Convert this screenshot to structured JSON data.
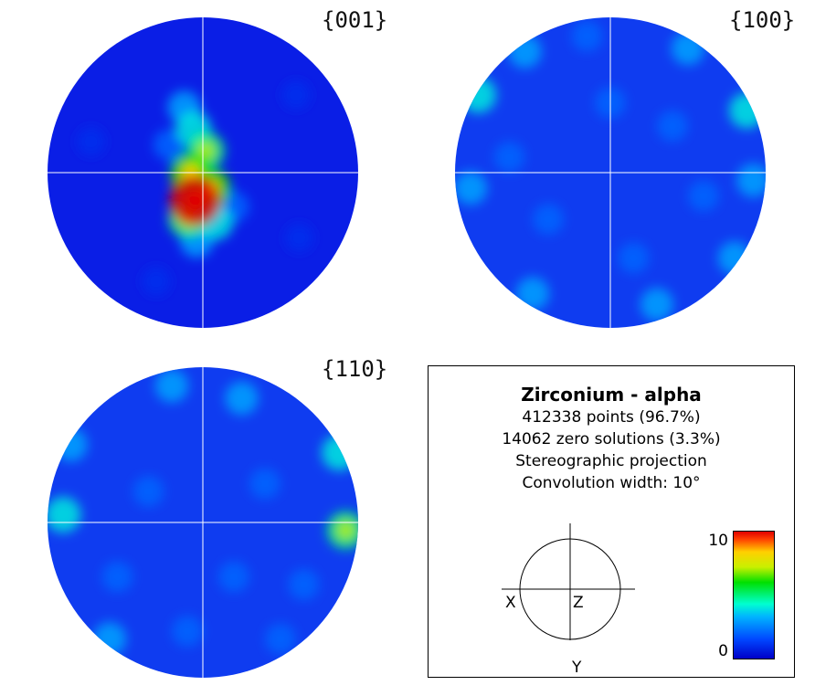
{
  "chart_data": {
    "type": "pole_figure",
    "figures": [
      {
        "label": "{001}",
        "base_color": "#0a1ee6",
        "hotspots": [
          {
            "x": -0.05,
            "y": 0.18,
            "level": 10
          },
          {
            "x": 0.05,
            "y": 0.1,
            "level": 6
          },
          {
            "x": -0.08,
            "y": 0.0,
            "level": 6
          },
          {
            "x": 0.02,
            "y": -0.14,
            "level": 5
          },
          {
            "x": -0.06,
            "y": -0.28,
            "level": 4
          },
          {
            "x": -0.1,
            "y": 0.3,
            "level": 5
          },
          {
            "x": 0.08,
            "y": 0.32,
            "level": 4
          },
          {
            "x": -0.04,
            "y": 0.44,
            "level": 3
          },
          {
            "x": -0.12,
            "y": -0.42,
            "level": 3
          },
          {
            "x": -0.22,
            "y": -0.18,
            "level": 2
          },
          {
            "x": 0.2,
            "y": 0.22,
            "level": 2
          },
          {
            "x": -0.72,
            "y": -0.2,
            "level": 1
          },
          {
            "x": -0.3,
            "y": 0.7,
            "level": 1
          },
          {
            "x": 0.62,
            "y": 0.42,
            "level": 1
          },
          {
            "x": 0.6,
            "y": -0.5,
            "level": 1
          }
        ]
      },
      {
        "label": "{100}",
        "base_color": "#0f3cf0",
        "hotspots": [
          {
            "x": -0.85,
            "y": -0.5,
            "level": 4
          },
          {
            "x": 0.88,
            "y": -0.4,
            "level": 4
          },
          {
            "x": 0.8,
            "y": 0.55,
            "level": 3
          },
          {
            "x": -0.9,
            "y": 0.1,
            "level": 3
          },
          {
            "x": 0.92,
            "y": 0.05,
            "level": 3
          },
          {
            "x": -0.55,
            "y": -0.78,
            "level": 3
          },
          {
            "x": 0.5,
            "y": -0.8,
            "level": 3
          },
          {
            "x": -0.5,
            "y": 0.78,
            "level": 3
          },
          {
            "x": 0.3,
            "y": 0.85,
            "level": 3
          },
          {
            "x": -0.15,
            "y": -0.88,
            "level": 2
          },
          {
            "x": 0.15,
            "y": 0.55,
            "level": 2
          },
          {
            "x": -0.4,
            "y": 0.3,
            "level": 2
          },
          {
            "x": 0.4,
            "y": -0.3,
            "level": 2
          },
          {
            "x": 0.0,
            "y": -0.45,
            "level": 2
          },
          {
            "x": -0.65,
            "y": -0.1,
            "level": 2
          },
          {
            "x": 0.6,
            "y": 0.15,
            "level": 2
          }
        ]
      },
      {
        "label": "{110}",
        "base_color": "#0f3cf0",
        "hotspots": [
          {
            "x": 0.92,
            "y": 0.05,
            "level": 5
          },
          {
            "x": 0.88,
            "y": -0.45,
            "level": 4
          },
          {
            "x": -0.9,
            "y": -0.05,
            "level": 4
          },
          {
            "x": -0.85,
            "y": -0.5,
            "level": 3
          },
          {
            "x": -0.6,
            "y": 0.75,
            "level": 3
          },
          {
            "x": -0.2,
            "y": -0.88,
            "level": 3
          },
          {
            "x": 0.25,
            "y": -0.8,
            "level": 3
          },
          {
            "x": 0.5,
            "y": 0.75,
            "level": 2
          },
          {
            "x": 0.65,
            "y": 0.4,
            "level": 2
          },
          {
            "x": -0.35,
            "y": -0.2,
            "level": 2
          },
          {
            "x": 0.2,
            "y": 0.35,
            "level": 2
          },
          {
            "x": -0.1,
            "y": 0.7,
            "level": 2
          },
          {
            "x": 0.4,
            "y": -0.25,
            "level": 2
          },
          {
            "x": -0.55,
            "y": 0.35,
            "level": 2
          }
        ]
      }
    ],
    "colorbar": {
      "min": 0,
      "max": 10,
      "min_label": "0",
      "max_label": "10"
    }
  },
  "legend": {
    "title": "Zirconium - alpha",
    "lines": [
      "412338 points  (96.7%)",
      "14062 zero solutions (3.3%)",
      "Stereographic projection",
      "Convolution width: 10°"
    ],
    "axes": {
      "x": "X",
      "y": "Y",
      "z": "Z"
    }
  }
}
